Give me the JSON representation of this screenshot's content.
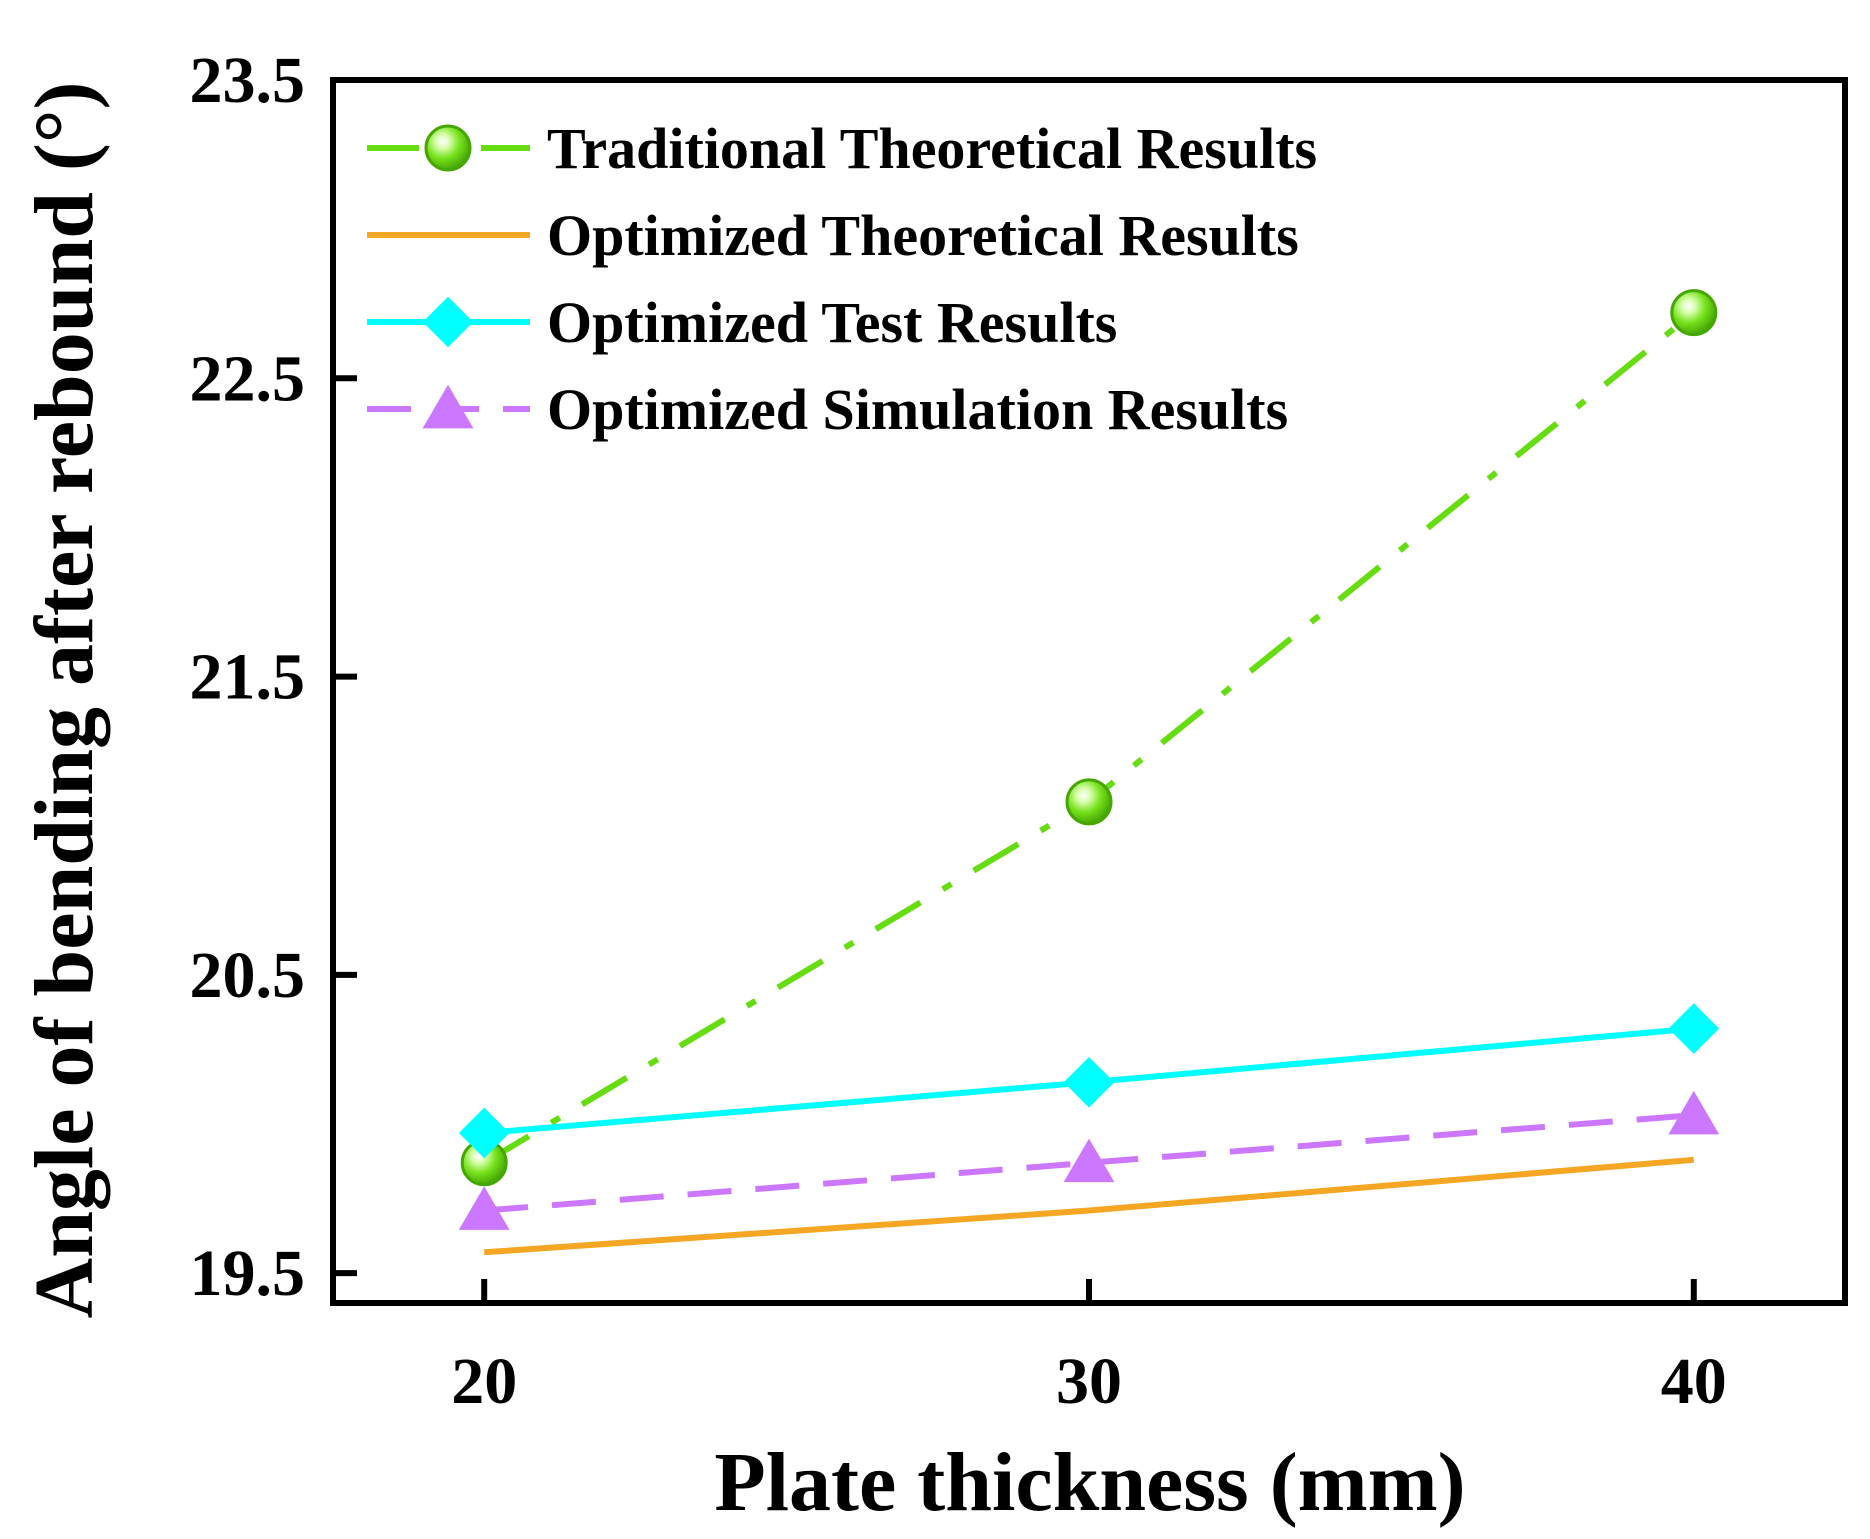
{
  "chart_data": {
    "type": "line",
    "xlabel": "Plate thickness (mm)",
    "ylabel": "Angle of bending after rebound (°)",
    "x": [
      20,
      30,
      40
    ],
    "xlim": [
      17.5,
      42.5
    ],
    "ylim": [
      19.4,
      23.5
    ],
    "xticks": [
      20,
      30,
      40
    ],
    "yticks": [
      "19.5",
      "20.5",
      "21.5",
      "22.5",
      "23.5"
    ],
    "legend_position": "top-left",
    "grid": false,
    "series": [
      {
        "name": "Traditional Theoretical Results",
        "values": [
          19.87,
          21.08,
          22.72
        ],
        "color": "#66dd11",
        "line_style": "dashdot",
        "marker": "sphere"
      },
      {
        "name": "Optimized Theoretical Results",
        "values": [
          19.57,
          19.71,
          19.88
        ],
        "color": "#f5a623",
        "line_style": "solid",
        "marker": "none"
      },
      {
        "name": "Optimized Test Results",
        "values": [
          19.97,
          20.14,
          20.32
        ],
        "color": "#00ffff",
        "line_style": "solid",
        "marker": "diamond"
      },
      {
        "name": "Optimized Simulation Results",
        "values": [
          19.71,
          19.87,
          20.03
        ],
        "color": "#cc77ff",
        "line_style": "dashed",
        "marker": "triangle"
      }
    ]
  }
}
